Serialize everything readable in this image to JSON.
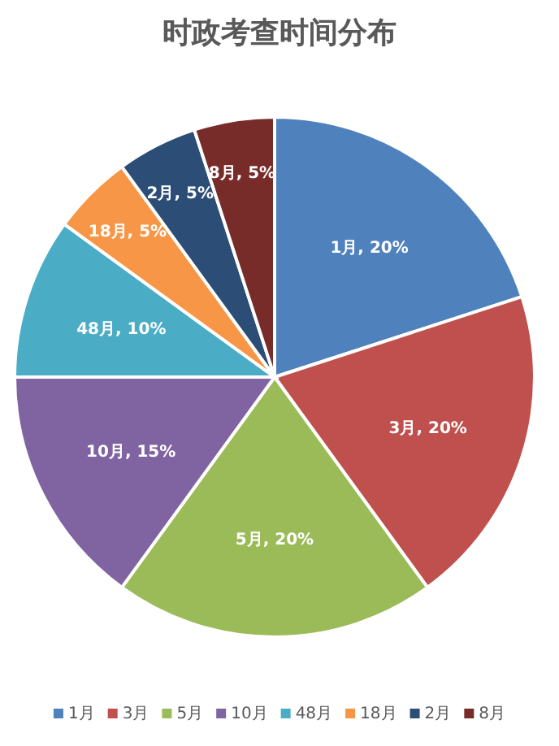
{
  "chart_data": {
    "type": "pie",
    "title": "时政考查时间分布",
    "categories": [
      "1月",
      "3月",
      "5月",
      "10月",
      "48月",
      "18月",
      "2月",
      "8月"
    ],
    "values": [
      20,
      20,
      20,
      15,
      10,
      5,
      5,
      5
    ],
    "colors": [
      "#4f81bd",
      "#c0504d",
      "#9bbb59",
      "#8064a2",
      "#4bacc6",
      "#f79646",
      "#2c4d75",
      "#772c2a"
    ],
    "value_labels": [
      "1月, 20%",
      "3月, 20%",
      "5月, 20%",
      "10月, 15%",
      "48月, 10%",
      "18月, 5%",
      "2月, 5%",
      "8月, 5%"
    ],
    "legend": "bottom"
  }
}
